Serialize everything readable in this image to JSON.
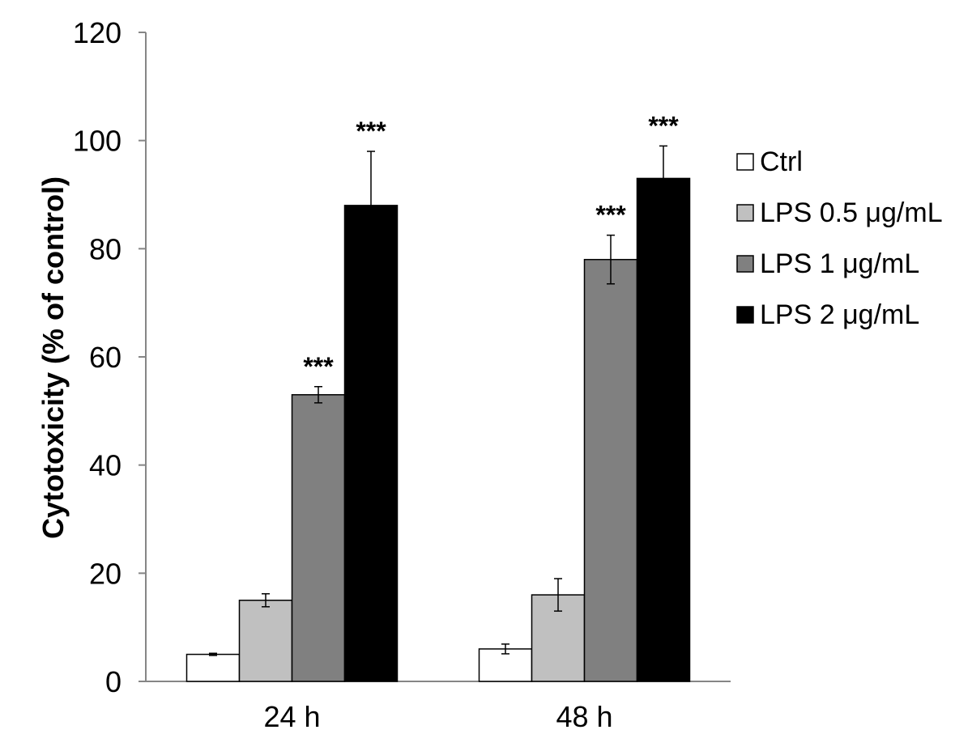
{
  "chart_data": {
    "type": "bar",
    "title": "",
    "xlabel": "",
    "ylabel": "Cytotoxicity (% of control)",
    "ylim": [
      0,
      120
    ],
    "yticks": [
      0,
      20,
      40,
      60,
      80,
      100,
      120
    ],
    "grid": false,
    "legend_position": "right",
    "categories": [
      "24 h",
      "48 h"
    ],
    "series": [
      {
        "name": "Ctrl",
        "color": "#ffffff",
        "values": [
          5,
          6
        ],
        "errors": [
          0.2,
          0.9
        ],
        "significance": [
          "",
          ""
        ]
      },
      {
        "name": "LPS 0.5 μg/mL",
        "color": "#c0c0c0",
        "values": [
          15,
          16
        ],
        "errors": [
          1.2,
          3.0
        ],
        "significance": [
          "",
          ""
        ]
      },
      {
        "name": "LPS 1 μg/mL",
        "color": "#808080",
        "values": [
          53,
          78
        ],
        "errors": [
          1.5,
          4.5
        ],
        "significance": [
          "***",
          "***"
        ]
      },
      {
        "name": "LPS 2 μg/mL",
        "color": "#000000",
        "values": [
          88,
          93
        ],
        "errors": [
          10,
          6
        ],
        "significance": [
          "***",
          "***"
        ]
      }
    ]
  }
}
